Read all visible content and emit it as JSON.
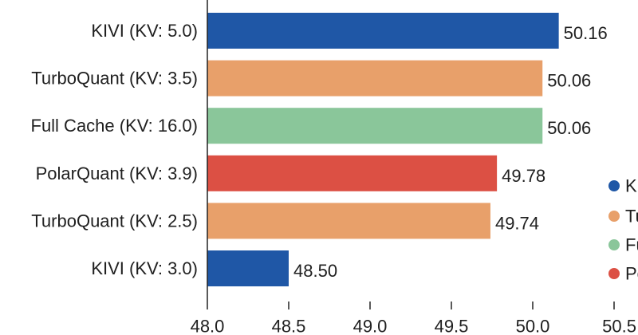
{
  "chart_data": {
    "type": "bar",
    "orientation": "horizontal",
    "title": "",
    "xlabel": "",
    "ylabel": "",
    "categories": [
      "KIVI (KV: 5.0)",
      "TurboQuant (KV: 3.5)",
      "Full Cache (KV: 16.0)",
      "PolarQuant (KV: 3.9)",
      "TurboQuant (KV: 2.5)",
      "KIVI (KV: 3.0)"
    ],
    "values": [
      50.16,
      50.06,
      50.06,
      49.78,
      49.74,
      48.5
    ],
    "value_labels": [
      "50.16",
      "50.06",
      "50.06",
      "49.78",
      "49.74",
      "48.50"
    ],
    "bar_colors": [
      "#1f57a6",
      "#e8a06a",
      "#8ac69a",
      "#dc5044",
      "#e8a06a",
      "#1f57a6"
    ],
    "xlim": [
      48.0,
      50.5
    ],
    "xticks": [
      48.0,
      48.5,
      49.0,
      49.5,
      50.0,
      50.5
    ],
    "xtick_labels": [
      "48.0",
      "48.5",
      "49.0",
      "49.5",
      "50.0",
      "50.5"
    ],
    "grid": false,
    "legend": {
      "position": "right, cut off",
      "entries": [
        {
          "label": "K",
          "color": "#1f57a6"
        },
        {
          "label": "Tu",
          "color": "#e8a06a"
        },
        {
          "label": "Fu",
          "color": "#8ac69a"
        },
        {
          "label": "Po",
          "color": "#dc5044"
        }
      ]
    }
  }
}
